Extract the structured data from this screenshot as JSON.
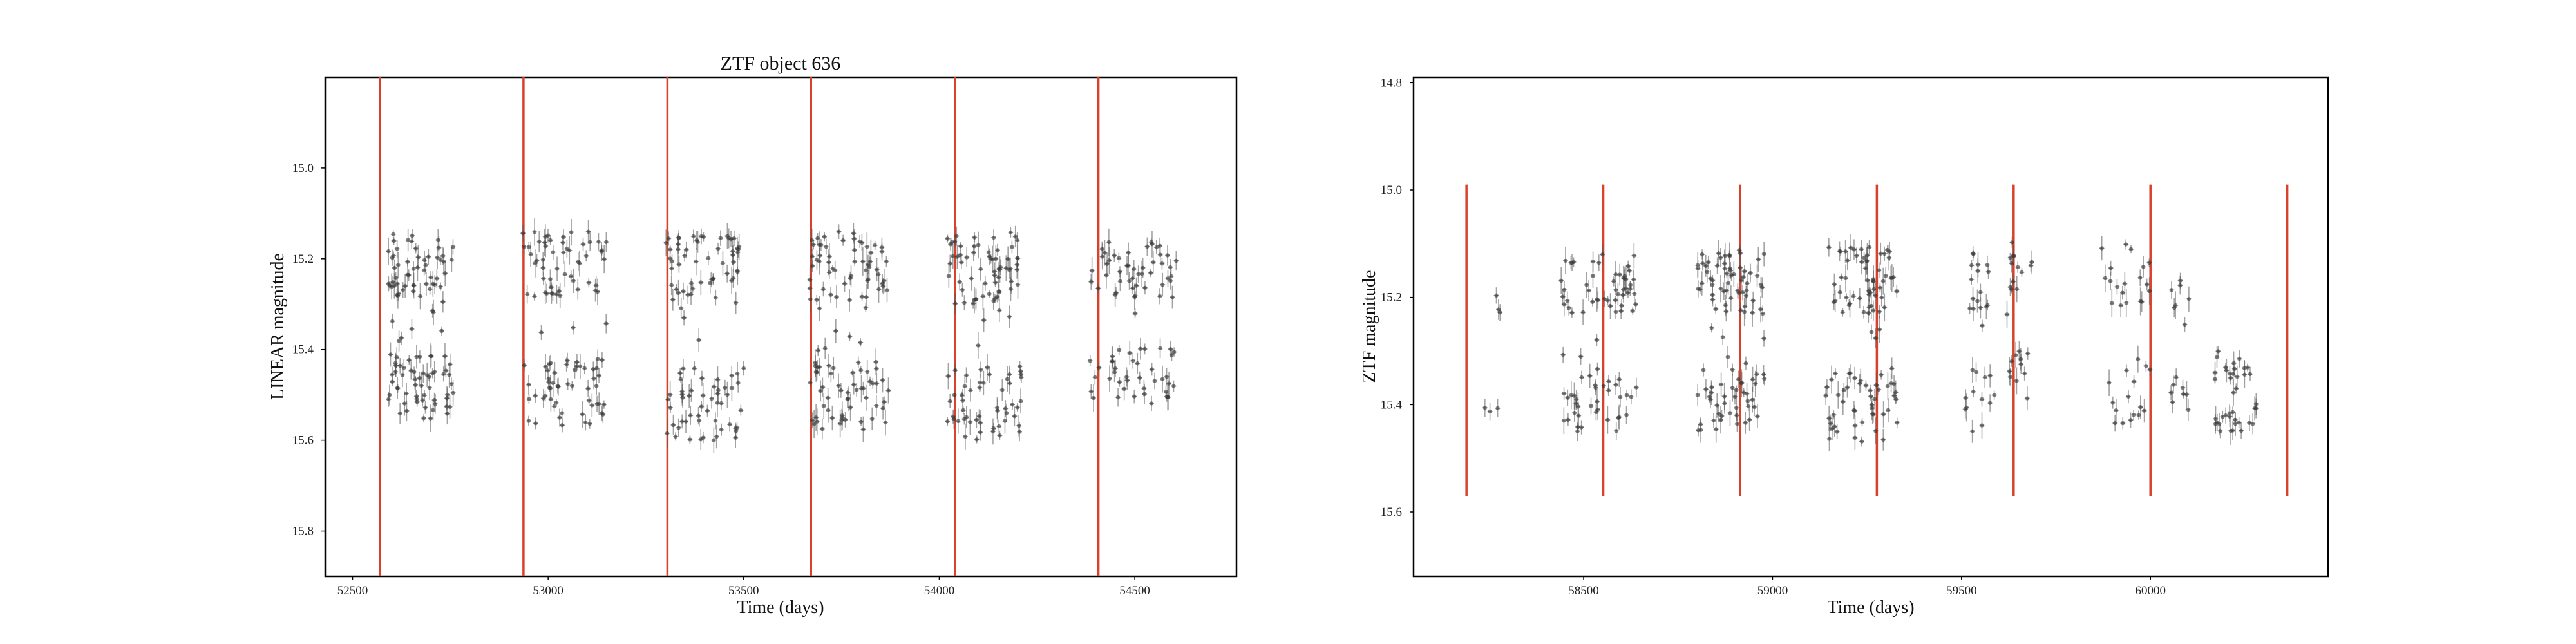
{
  "chart_data": [
    {
      "type": "scatter",
      "title": "ZTF object 636",
      "xlabel": "Time (days)",
      "ylabel": "LINEAR magnitude",
      "xlim": [
        52430,
        54760
      ],
      "ylim": [
        15.9,
        14.8
      ],
      "y_inverted": true,
      "grid": false,
      "x_ticks": [
        52500,
        53000,
        53500,
        54000,
        54500
      ],
      "y_ticks": [
        15.0,
        15.2,
        15.4,
        15.6,
        15.8
      ],
      "x_tick_labels": [
        "52500",
        "53000",
        "53500",
        "54000",
        "54500"
      ],
      "y_tick_labels": [
        "15.0",
        "15.2",
        "15.4",
        "15.6",
        "15.8"
      ],
      "period_lines": {
        "color": "#d9412b",
        "x": [
          52570,
          52937,
          53305,
          53672,
          54040,
          54407,
          54775
        ],
        "y_range": "full"
      },
      "seasons": [
        {
          "x_range": [
            52590,
            52760
          ],
          "mag_min": 15.14,
          "mag_max": 15.56,
          "count": 120
        },
        {
          "x_range": [
            52935,
            53150
          ],
          "mag_min": 15.14,
          "mag_max": 15.57,
          "count": 110
        },
        {
          "x_range": [
            53300,
            53500
          ],
          "mag_min": 15.14,
          "mag_max": 15.6,
          "count": 110
        },
        {
          "x_range": [
            53665,
            53870
          ],
          "mag_min": 15.14,
          "mag_max": 15.58,
          "count": 120
        },
        {
          "x_range": [
            54020,
            54210
          ],
          "mag_min": 15.14,
          "mag_max": 15.6,
          "count": 120
        },
        {
          "x_range": [
            54380,
            54610
          ],
          "mag_min": 15.16,
          "mag_max": 15.52,
          "count": 90
        }
      ]
    },
    {
      "type": "scatter",
      "title": "",
      "xlabel": "Time (days)",
      "ylabel": "ZTF magnitude",
      "xlim": [
        58050,
        60470
      ],
      "ylim": [
        15.72,
        14.79
      ],
      "y_inverted": true,
      "grid": false,
      "x_ticks": [
        58500,
        59000,
        59500,
        60000
      ],
      "y_ticks": [
        14.8,
        15.0,
        15.2,
        15.4,
        15.6
      ],
      "x_tick_labels": [
        "58500",
        "59000",
        "59500",
        "60000"
      ],
      "y_tick_labels": [
        "14.8",
        "15.0",
        "15.2",
        "15.4",
        "15.6"
      ],
      "period_lines": {
        "color": "#d9412b",
        "x": [
          58190,
          58552,
          58914,
          59276,
          59638,
          60000,
          60362
        ],
        "y_range": [
          14.99,
          15.57
        ]
      },
      "seasons": [
        {
          "x_range": [
            58230,
            58280
          ],
          "mag_min": 15.19,
          "mag_max": 15.44,
          "count": 6
        },
        {
          "x_range": [
            58440,
            58640
          ],
          "mag_min": 15.11,
          "mag_max": 15.45,
          "count": 90
        },
        {
          "x_range": [
            58800,
            58980
          ],
          "mag_min": 15.11,
          "mag_max": 15.45,
          "count": 110
        },
        {
          "x_range": [
            59140,
            59330
          ],
          "mag_min": 15.1,
          "mag_max": 15.47,
          "count": 110
        },
        {
          "x_range": [
            59510,
            59590
          ],
          "mag_min": 15.11,
          "mag_max": 15.45,
          "count": 30
        },
        {
          "x_range": [
            59620,
            59690
          ],
          "mag_min": 15.08,
          "mag_max": 15.4,
          "count": 25
        },
        {
          "x_range": [
            59870,
            60000
          ],
          "mag_min": 15.1,
          "mag_max": 15.44,
          "count": 35
        },
        {
          "x_range": [
            60050,
            60110
          ],
          "mag_min": 15.15,
          "mag_max": 15.45,
          "count": 15
        },
        {
          "x_range": [
            60170,
            60280
          ],
          "mag_min": 15.3,
          "mag_max": 15.45,
          "count": 40
        }
      ]
    }
  ]
}
